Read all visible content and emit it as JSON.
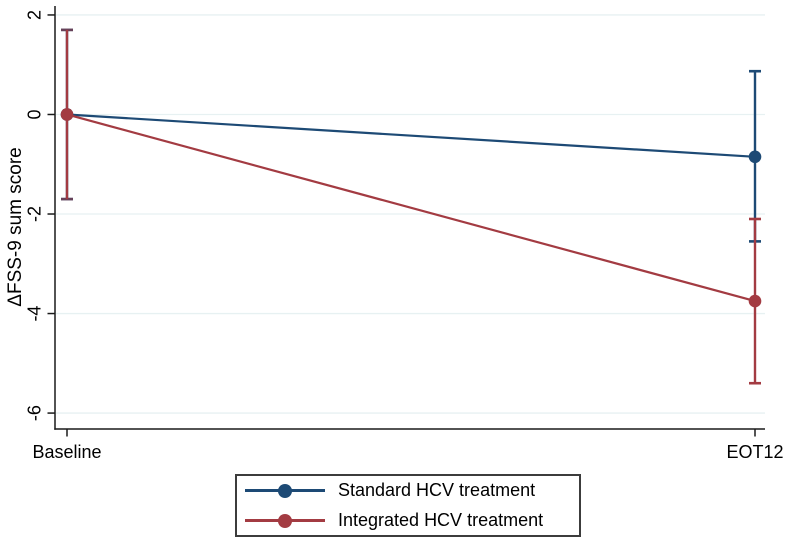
{
  "figure": {
    "ylabel": "ΔFSS-9 sum score"
  },
  "colors": {
    "standard_blue": "#1d4a75",
    "integrated_red": "#a33b42",
    "gridline": "#e7f1f2",
    "axis": "#1a1a1a",
    "text": "#000000",
    "legend_border": "#3c3c3c",
    "background": "#ffffff"
  },
  "chart_data": {
    "type": "line",
    "title": "",
    "xlabel": "",
    "ylabel": "ΔFSS-9 sum score",
    "categories": [
      "Baseline",
      "EOT12"
    ],
    "series": [
      {
        "name": "Standard HCV treatment",
        "color": "#1d4a75",
        "values": [
          0,
          -0.85
        ],
        "ci_low": [
          -1.7,
          -2.55
        ],
        "ci_high": [
          1.7,
          0.87
        ]
      },
      {
        "name": "Integrated HCV treatment",
        "color": "#a33b42",
        "values": [
          0,
          -3.75
        ],
        "ci_low": [
          -1.7,
          -5.4
        ],
        "ci_high": [
          1.7,
          -2.1
        ]
      }
    ],
    "yticks": [
      2,
      0,
      -2,
      -4,
      -6
    ],
    "ylim": [
      -6.32,
      2.18
    ],
    "grid": true,
    "error_bars": true,
    "legend_position": "bottom-center"
  }
}
